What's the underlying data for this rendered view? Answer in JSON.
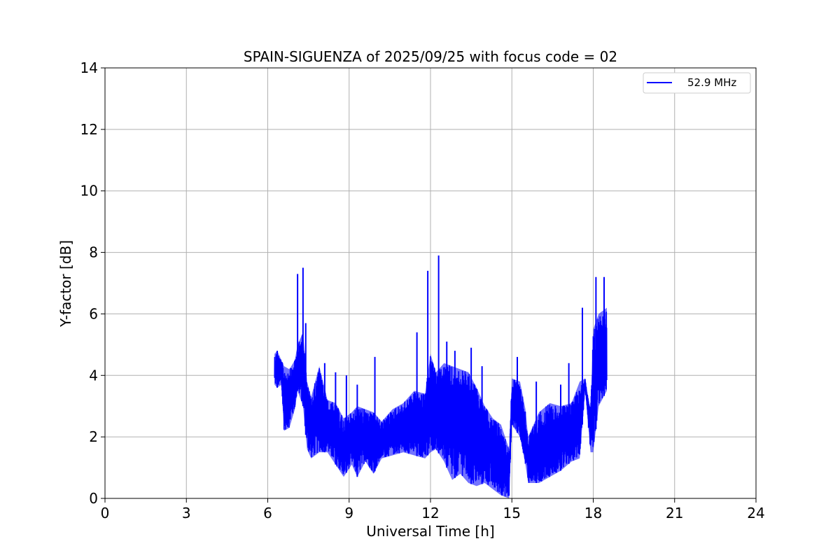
{
  "chart_data": {
    "type": "line",
    "title": "SPAIN-SIGUENZA of 2025/09/25 with focus code = 02",
    "xlabel": "Universal Time [h]",
    "ylabel": "Y-factor [dB]",
    "xlim": [
      0,
      24
    ],
    "ylim": [
      0,
      14
    ],
    "xticks": [
      0,
      3,
      6,
      9,
      12,
      15,
      18,
      21,
      24
    ],
    "yticks": [
      0,
      2,
      4,
      6,
      8,
      10,
      12,
      14
    ],
    "xtick_labels": [
      "0",
      "3",
      "6",
      "9",
      "12",
      "15",
      "18",
      "21",
      "24"
    ],
    "ytick_labels": [
      "0",
      "2",
      "4",
      "6",
      "8",
      "10",
      "12",
      "14"
    ],
    "grid": true,
    "legend_position": "top-right",
    "series": [
      {
        "name": "52.9 MHz",
        "color": "#0000ff",
        "envelope": {
          "x": [
            6.25,
            6.35,
            6.5,
            6.6,
            6.8,
            7.0,
            7.1,
            7.3,
            7.45,
            7.6,
            7.9,
            8.2,
            8.5,
            8.8,
            9.1,
            9.3,
            9.6,
            9.9,
            10.2,
            10.6,
            11.0,
            11.4,
            11.8,
            12.0,
            12.2,
            12.5,
            12.8,
            13.1,
            13.4,
            13.7,
            14.0,
            14.3,
            14.6,
            14.9,
            15.0,
            15.3,
            15.5,
            15.6,
            16.0,
            16.4,
            16.8,
            17.2,
            17.5,
            17.7,
            17.9,
            18.0,
            18.2,
            18.5
          ],
          "ymin": [
            3.7,
            3.6,
            3.7,
            2.2,
            2.3,
            2.9,
            3.5,
            3.0,
            1.6,
            1.3,
            1.5,
            1.5,
            1.1,
            0.7,
            1.1,
            0.7,
            1.2,
            0.8,
            1.3,
            1.4,
            1.5,
            1.4,
            1.3,
            1.5,
            1.6,
            1.2,
            0.6,
            0.8,
            0.5,
            0.4,
            0.5,
            0.3,
            0.1,
            0.0,
            2.4,
            2.0,
            1.1,
            0.5,
            0.5,
            0.7,
            0.9,
            1.2,
            1.3,
            3.5,
            1.5,
            1.5,
            3.0,
            3.5
          ],
          "ymax": [
            4.7,
            4.8,
            4.5,
            4.3,
            4.2,
            4.5,
            5.0,
            5.4,
            3.8,
            3.3,
            4.3,
            3.2,
            3.1,
            2.6,
            2.8,
            3.0,
            2.9,
            2.8,
            2.5,
            2.9,
            3.1,
            3.5,
            3.4,
            4.7,
            4.1,
            4.4,
            4.3,
            4.2,
            4.1,
            3.6,
            3.0,
            2.6,
            2.4,
            1.6,
            3.9,
            3.8,
            2.9,
            2.0,
            2.8,
            3.1,
            3.0,
            3.1,
            3.8,
            3.9,
            2.9,
            5.5,
            6.0,
            6.2
          ]
        },
        "spikes": [
          {
            "x": 6.35,
            "y": 4.8
          },
          {
            "x": 7.1,
            "y": 7.3
          },
          {
            "x": 7.3,
            "y": 7.5
          },
          {
            "x": 7.4,
            "y": 5.7
          },
          {
            "x": 8.1,
            "y": 4.4
          },
          {
            "x": 8.5,
            "y": 4.1
          },
          {
            "x": 8.9,
            "y": 4.0
          },
          {
            "x": 9.3,
            "y": 3.7
          },
          {
            "x": 9.95,
            "y": 4.6
          },
          {
            "x": 11.5,
            "y": 5.4
          },
          {
            "x": 11.9,
            "y": 7.4
          },
          {
            "x": 12.3,
            "y": 7.9
          },
          {
            "x": 12.6,
            "y": 5.1
          },
          {
            "x": 12.9,
            "y": 4.8
          },
          {
            "x": 13.5,
            "y": 4.9
          },
          {
            "x": 13.9,
            "y": 4.3
          },
          {
            "x": 15.2,
            "y": 4.6
          },
          {
            "x": 15.9,
            "y": 3.8
          },
          {
            "x": 16.8,
            "y": 3.7
          },
          {
            "x": 17.1,
            "y": 4.4
          },
          {
            "x": 17.6,
            "y": 6.2
          },
          {
            "x": 18.1,
            "y": 7.2
          },
          {
            "x": 18.4,
            "y": 7.2
          }
        ]
      }
    ]
  }
}
